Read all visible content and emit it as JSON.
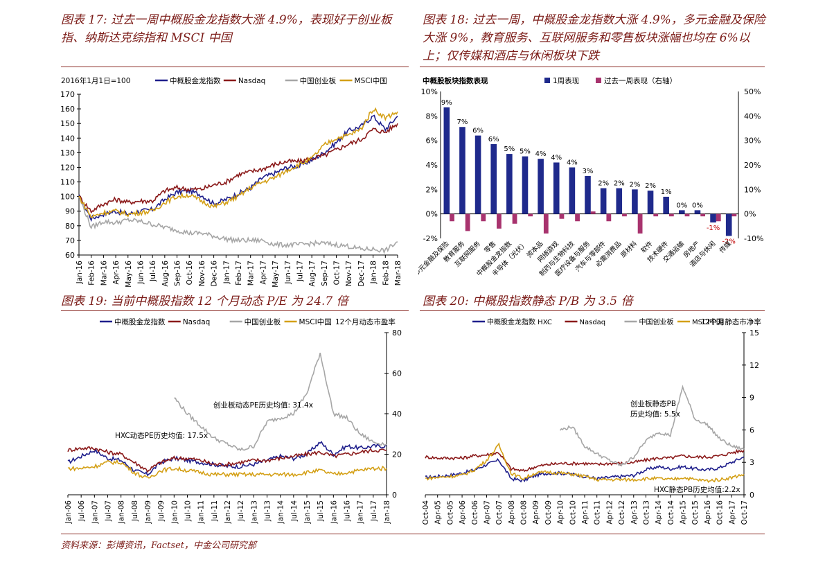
{
  "titles": {
    "fig17": "图表 17: 过去一周中概股金龙指数大涨 4.9%，表现好于创业板指、纳斯达克综指和 MSCI 中国",
    "fig18": "图表 18: 过去一周，中概股金龙指数大涨 4.9%，多元金融及保险大涨 9%，教育服务、互联网服务和零售板块涨幅也均在 6%以上；仅传媒和酒店与休闲板块下跌",
    "fig19": "图表 19: 当前中概股指数 12 个月动态 P/E 为 24.7 倍",
    "fig20": "图表 20: 中概股指数静态 P/B 为 3.5 倍"
  },
  "source": "资料来源：彭博资讯，Factset，中金公司研究部",
  "colors": {
    "navy": "#1f1f8c",
    "darkred": "#8b1a1a",
    "gray": "#a6a6a6",
    "gold": "#d4a017",
    "bar_blue": "#1f2a8c",
    "bar_pink": "#a8336e"
  },
  "chart_data": [
    {
      "id": "fig17",
      "type": "line",
      "note": "2016年1月1日=100",
      "series_names": [
        "中概股金龙指数",
        "Nasdaq",
        "中国创业板",
        "MSCI中国"
      ],
      "x_ticks": [
        "Jan-16",
        "Feb-16",
        "Mar-16",
        "Apr-16",
        "May-16",
        "Jun-16",
        "Jul-16",
        "Aug-16",
        "Sep-16",
        "Oct-16",
        "Nov-16",
        "Dec-16",
        "Jan-17",
        "Feb-17",
        "Mar-17",
        "Apr-17",
        "May-17",
        "Jun-17",
        "Jul-17",
        "Aug-17",
        "Sep-17",
        "Oct-17",
        "Nov-17",
        "Dec-17",
        "Jan-18",
        "Feb-18",
        "Mar-18"
      ],
      "ylim": [
        60,
        170
      ],
      "y_ticks": [
        60,
        70,
        80,
        90,
        100,
        110,
        120,
        130,
        140,
        150,
        160,
        170
      ],
      "series": [
        {
          "name": "中概股金龙指数",
          "color": "#1f1f8c",
          "values": [
            100,
            85,
            88,
            90,
            88,
            90,
            91,
            98,
            103,
            104,
            101,
            95,
            98,
            102,
            106,
            113,
            116,
            120,
            121,
            125,
            130,
            137,
            145,
            148,
            155,
            146,
            155
          ]
        },
        {
          "name": "Nasdaq",
          "color": "#8b1a1a",
          "values": [
            100,
            90,
            95,
            98,
            96,
            97,
            97,
            104,
            106,
            105,
            105,
            108,
            110,
            115,
            117,
            119,
            122,
            124,
            124,
            126,
            128,
            132,
            136,
            139,
            146,
            144,
            150
          ]
        },
        {
          "name": "中国创业板",
          "color": "#a6a6a6",
          "values": [
            100,
            79,
            83,
            82,
            84,
            83,
            81,
            79,
            77,
            75,
            75,
            73,
            71,
            70,
            70,
            70,
            67,
            67,
            67,
            68,
            68,
            67,
            66,
            64,
            64,
            63,
            69
          ]
        },
        {
          "name": "MSCI中国",
          "color": "#d4a017",
          "values": [
            100,
            86,
            89,
            90,
            88,
            89,
            90,
            96,
            100,
            101,
            97,
            93,
            96,
            100,
            106,
            110,
            113,
            118,
            122,
            126,
            135,
            140,
            142,
            146,
            160,
            154,
            158
          ]
        }
      ]
    },
    {
      "id": "fig18",
      "type": "bar",
      "title": "中概股板块指数表现",
      "series_names": [
        "1周表现",
        "过去一周表现（右轴）"
      ],
      "left_ticks": [
        "10%",
        "8%",
        "6%",
        "4%",
        "2%",
        "0%",
        "-2%"
      ],
      "left_lim": [
        -2,
        10
      ],
      "right_ticks": [
        "50%",
        "40%",
        "30%",
        "20%",
        "10%",
        "0%",
        "-10%"
      ],
      "right_lim": [
        -10,
        50
      ],
      "categories": [
        "多元金融及保险",
        "教育服务",
        "互联网服务",
        "零售",
        "中概股金龙指数",
        "半导体（光伏）",
        "资本品",
        "网络游戏",
        "制药与生物科技",
        "医疗设备与服务",
        "汽车与零部件",
        "必需消费品",
        "原材料",
        "软件",
        "技术硬件",
        "交通运输",
        "房地产",
        "酒店与休闲",
        "传媒"
      ],
      "bar_values": [
        8.7,
        7.1,
        6.4,
        5.7,
        4.9,
        4.7,
        4.5,
        4.2,
        3.8,
        3.1,
        2.1,
        2.1,
        2.0,
        1.9,
        1.4,
        0.3,
        0.3,
        -0.7,
        -1.8
      ],
      "bar_labels": [
        "9%",
        "7%",
        "6%",
        "6%",
        "5%",
        "5%",
        "4%",
        "4%",
        "4%",
        "3%",
        "2%",
        "2%",
        "2%",
        "2%",
        "1%",
        "0%",
        "0%",
        "-1%",
        "-2%"
      ],
      "right_values": [
        -3,
        -7,
        -3,
        -6,
        -4,
        -1,
        -8,
        -2,
        -3,
        1,
        -3,
        -1,
        -8,
        -1,
        -1,
        -1,
        -1,
        -3,
        -1
      ]
    },
    {
      "id": "fig19",
      "type": "line",
      "right_label": "12个月动态市盈率",
      "series_names": [
        "中概股金龙指数",
        "Nasdaq",
        "中国创业板",
        "MSCI中国"
      ],
      "x_ticks": [
        "Jan-06",
        "Jul-06",
        "Jan-07",
        "Jul-07",
        "Jan-08",
        "Jul-08",
        "Jan-09",
        "Jul-09",
        "Jan-10",
        "Jul-10",
        "Jan-11",
        "Jul-11",
        "Jan-12",
        "Jul-12",
        "Jan-13",
        "Jul-13",
        "Jan-14",
        "Jul-14",
        "Jan-15",
        "Jul-15",
        "Jan-16",
        "Jul-16",
        "Jan-17",
        "Jul-17",
        "Jan-18"
      ],
      "ylim": [
        0,
        80
      ],
      "y_ticks": [
        0,
        20,
        40,
        60,
        80
      ],
      "annotations": [
        "创业板动态PE历史均值: 31.4x",
        "HXC动态PE历史均值: 17.5x"
      ],
      "series": [
        {
          "name": "中概股金龙指数",
          "color": "#1f1f8c",
          "values": [
            16,
            19,
            22,
            18,
            17,
            12,
            10,
            16,
            18,
            17,
            16,
            15,
            14,
            14,
            15,
            17,
            19,
            18,
            20,
            26,
            20,
            24,
            23,
            24,
            24
          ]
        },
        {
          "name": "Nasdaq",
          "color": "#8b1a1a",
          "values": [
            22,
            23,
            23,
            21,
            20,
            16,
            12,
            16,
            18,
            18,
            17,
            15,
            15,
            16,
            17,
            17,
            18,
            19,
            20,
            21,
            19,
            20,
            21,
            22,
            22
          ]
        },
        {
          "name": "中国创业板",
          "color": "#a6a6a6",
          "values": [
            null,
            null,
            null,
            null,
            null,
            null,
            null,
            null,
            48,
            40,
            34,
            28,
            25,
            22,
            24,
            36,
            38,
            40,
            50,
            70,
            40,
            38,
            30,
            26,
            25
          ]
        },
        {
          "name": "MSCI中国",
          "color": "#d4a017",
          "values": [
            13,
            13,
            14,
            16,
            16,
            11,
            8,
            12,
            13,
            12,
            11,
            10,
            10,
            10,
            10,
            10,
            10,
            10,
            11,
            12,
            10,
            11,
            12,
            13,
            13
          ]
        }
      ]
    },
    {
      "id": "fig20",
      "type": "line",
      "right_label": "12个月静态市净率",
      "series_names": [
        "中概股金龙指数 HXC",
        "Nasdaq",
        "中国创业板",
        "MSCI中国"
      ],
      "x_ticks": [
        "Oct-04",
        "Apr-05",
        "Oct-05",
        "Apr-06",
        "Oct-06",
        "Apr-07",
        "Oct-07",
        "Apr-08",
        "Oct-08",
        "Apr-09",
        "Oct-09",
        "Apr-10",
        "Oct-10",
        "Apr-11",
        "Oct-11",
        "Apr-12",
        "Oct-12",
        "Apr-13",
        "Oct-13",
        "Apr-14",
        "Oct-14",
        "Apr-15",
        "Oct-15",
        "Apr-16",
        "Oct-16",
        "Apr-17",
        "Oct-17"
      ],
      "ylim": [
        0,
        15
      ],
      "y_ticks": [
        0,
        3,
        6,
        9,
        12,
        15
      ],
      "annotations": [
        "创业板静态PB",
        "历史均值: 5.5x",
        "HXC静态PB历史均值:2.2x"
      ],
      "series": [
        {
          "name": "中概股金龙指数 HXC",
          "color": "#1f1f8c",
          "values": [
            1.6,
            1.7,
            1.8,
            2.0,
            2.3,
            2.8,
            3.2,
            1.5,
            1.3,
            1.8,
            2.0,
            2.0,
            1.9,
            1.7,
            1.5,
            1.6,
            1.7,
            1.8,
            2.3,
            2.6,
            2.4,
            2.6,
            2.4,
            2.3,
            2.5,
            3.0,
            3.5
          ]
        },
        {
          "name": "Nasdaq",
          "color": "#8b1a1a",
          "values": [
            3.5,
            3.4,
            3.4,
            3.4,
            3.6,
            3.7,
            3.9,
            2.4,
            2.2,
            2.6,
            2.8,
            2.9,
            2.9,
            2.9,
            2.8,
            2.9,
            2.9,
            3.0,
            3.2,
            3.4,
            3.4,
            3.6,
            3.5,
            3.5,
            3.6,
            3.9,
            4.1
          ]
        },
        {
          "name": "中国创业板",
          "color": "#a6a6a6",
          "values": [
            null,
            null,
            null,
            null,
            null,
            null,
            null,
            null,
            null,
            null,
            null,
            6.0,
            6.3,
            4.5,
            3.8,
            3.2,
            2.7,
            3.5,
            5.0,
            5.8,
            5.5,
            10.0,
            7.0,
            6.5,
            5.2,
            4.5,
            4.2
          ]
        },
        {
          "name": "MSCI中国",
          "color": "#d4a017",
          "values": [
            1.5,
            1.6,
            1.7,
            1.8,
            2.3,
            3.2,
            4.6,
            2.0,
            1.5,
            2.0,
            2.1,
            2.0,
            1.9,
            1.7,
            1.4,
            1.4,
            1.4,
            1.4,
            1.5,
            1.5,
            1.4,
            1.6,
            1.4,
            1.3,
            1.4,
            1.6,
            1.9
          ]
        }
      ]
    }
  ]
}
